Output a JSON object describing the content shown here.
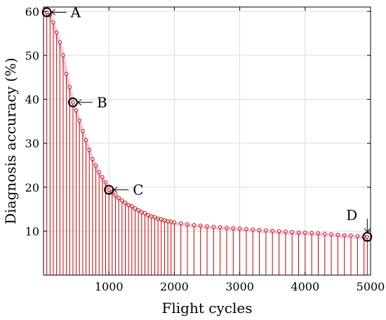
{
  "chart_data": {
    "type": "stem",
    "title": "",
    "xlabel": "Flight cycles",
    "ylabel": "Diagnosis accuracy (%)",
    "xlim": [
      0,
      5000
    ],
    "ylim": [
      0,
      61
    ],
    "xticks": [
      1000,
      2000,
      3000,
      4000,
      5000
    ],
    "yticks": [
      10,
      20,
      30,
      40,
      50,
      60
    ],
    "grid": true,
    "colors": {
      "stem": "#cc0000",
      "marker": "#cc0000",
      "highlight": "#000000",
      "band": "#f4b8d8"
    },
    "series": [
      {
        "points": [
          [
            50,
            59.8
          ],
          [
            100,
            59.2
          ],
          [
            150,
            57.5
          ],
          [
            200,
            55.2
          ],
          [
            250,
            53.0
          ],
          [
            300,
            50.0
          ],
          [
            350,
            45.8
          ],
          [
            400,
            42.8
          ],
          [
            450,
            39.3
          ],
          [
            500,
            37.5
          ],
          [
            550,
            35.2
          ],
          [
            600,
            32.8
          ],
          [
            650,
            30.7
          ],
          [
            700,
            28.5
          ],
          [
            750,
            26.4
          ],
          [
            800,
            24.9
          ],
          [
            850,
            23.4
          ],
          [
            900,
            22.3
          ],
          [
            950,
            21.1
          ],
          [
            1000,
            19.4
          ],
          [
            1050,
            18.9
          ],
          [
            1100,
            18.2
          ],
          [
            1150,
            17.6
          ],
          [
            1200,
            17.0
          ],
          [
            1250,
            16.5
          ],
          [
            1300,
            16.0
          ],
          [
            1350,
            15.7
          ],
          [
            1400,
            15.2
          ],
          [
            1450,
            14.8
          ],
          [
            1500,
            14.4
          ],
          [
            1550,
            14.1
          ],
          [
            1600,
            13.7
          ],
          [
            1650,
            13.4
          ],
          [
            1700,
            13.2
          ],
          [
            1750,
            12.9
          ],
          [
            1800,
            12.7
          ],
          [
            1850,
            12.5
          ],
          [
            1900,
            12.3
          ],
          [
            1950,
            12.2
          ],
          [
            2000,
            12.0
          ],
          [
            2100,
            11.8
          ],
          [
            2200,
            11.6
          ],
          [
            2300,
            11.4
          ],
          [
            2400,
            11.3
          ],
          [
            2500,
            11.1
          ],
          [
            2600,
            11.0
          ],
          [
            2700,
            10.9
          ],
          [
            2800,
            10.8
          ],
          [
            2900,
            10.7
          ],
          [
            3000,
            10.6
          ],
          [
            3100,
            10.5
          ],
          [
            3200,
            10.4
          ],
          [
            3300,
            10.3
          ],
          [
            3400,
            10.2
          ],
          [
            3500,
            10.1
          ],
          [
            3600,
            10.0
          ],
          [
            3700,
            9.9
          ],
          [
            3800,
            9.8
          ],
          [
            3900,
            9.7
          ],
          [
            4000,
            9.7
          ],
          [
            4100,
            9.6
          ],
          [
            4200,
            9.5
          ],
          [
            4300,
            9.4
          ],
          [
            4400,
            9.3
          ],
          [
            4500,
            9.2
          ],
          [
            4600,
            9.1
          ],
          [
            4700,
            9.0
          ],
          [
            4800,
            8.9
          ],
          [
            4900,
            8.8
          ],
          [
            4950,
            8.7
          ]
        ]
      }
    ],
    "annotations": [
      {
        "label": "A",
        "x": 50,
        "y": 59.8,
        "arrow": "left"
      },
      {
        "label": "B",
        "x": 450,
        "y": 39.3,
        "arrow": "left"
      },
      {
        "label": "C",
        "x": 1000,
        "y": 19.4,
        "arrow": "left"
      },
      {
        "label": "D",
        "x": 4950,
        "y": 8.7,
        "arrow": "up"
      }
    ]
  }
}
